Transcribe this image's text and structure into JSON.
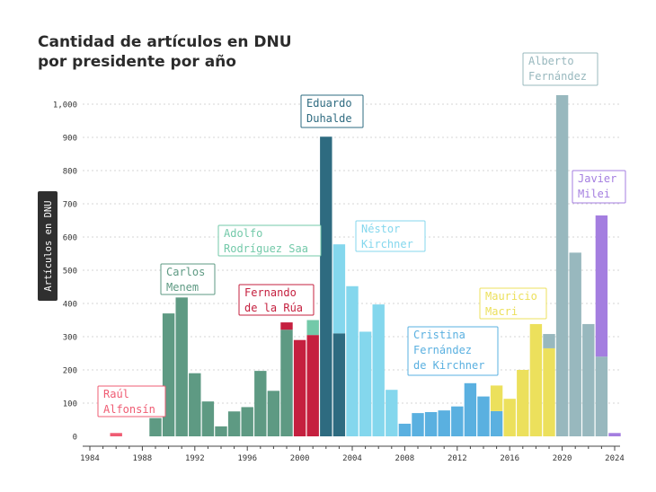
{
  "chart_data": {
    "type": "bar",
    "title_lines": [
      "Cantidad de artículos en DNU",
      "por presidente por año"
    ],
    "ylabel": "Artículos en DNU",
    "xlabel": "",
    "ylim": [
      0,
      1030
    ],
    "xlim": [
      1984,
      2025
    ],
    "y_ticks": [
      0,
      100,
      200,
      300,
      400,
      500,
      600,
      700,
      800,
      900,
      1000
    ],
    "y_tick_labels": [
      "0",
      "100",
      "200",
      "300",
      "400",
      "500",
      "600",
      "700",
      "800",
      "900",
      "1,000"
    ],
    "x_ticks": [
      1984,
      1988,
      1992,
      1996,
      2000,
      2004,
      2008,
      2012,
      2016,
      2020,
      2024
    ],
    "x_tick_labels": [
      "1984",
      "1988",
      "1992",
      "1996",
      "2000",
      "2004",
      "2008",
      "2012",
      "2016",
      "2020",
      "2024"
    ],
    "grid": true,
    "presidents": [
      {
        "name_lines": [
          "Raúl",
          "Alfonsín"
        ],
        "color": "#ef5c73"
      },
      {
        "name_lines": [
          "Carlos",
          "Menem"
        ],
        "color": "#5e9a83"
      },
      {
        "name_lines": [
          "Fernando",
          "de la Rúa"
        ],
        "color": "#c5203f"
      },
      {
        "name_lines": [
          "Adolfo",
          "Rodríguez Saa"
        ],
        "color": "#73c9a9"
      },
      {
        "name_lines": [
          "Eduardo",
          "Duhalde"
        ],
        "color": "#2e6b80"
      },
      {
        "name_lines": [
          "Néstor",
          "Kirchner"
        ],
        "color": "#84d7ed"
      },
      {
        "name_lines": [
          "Cristina",
          "Fernández",
          "de Kirchner"
        ],
        "color": "#5ab0e0"
      },
      {
        "name_lines": [
          "Mauricio",
          "Macri"
        ],
        "color": "#ece05c"
      },
      {
        "name_lines": [
          "Alberto",
          "Fernández"
        ],
        "color": "#98b8be"
      },
      {
        "name_lines": [
          "Javier",
          "Milei"
        ],
        "color": "#a47ee0"
      }
    ],
    "bars": [
      {
        "year": 1986,
        "segments": [
          {
            "p": 0,
            "value": 10
          }
        ]
      },
      {
        "year": 1989,
        "segments": [
          {
            "p": 1,
            "value": 55
          }
        ]
      },
      {
        "year": 1990,
        "segments": [
          {
            "p": 1,
            "value": 370
          }
        ]
      },
      {
        "year": 1991,
        "segments": [
          {
            "p": 1,
            "value": 418
          }
        ]
      },
      {
        "year": 1992,
        "segments": [
          {
            "p": 1,
            "value": 190
          }
        ]
      },
      {
        "year": 1993,
        "segments": [
          {
            "p": 1,
            "value": 105
          }
        ]
      },
      {
        "year": 1994,
        "segments": [
          {
            "p": 1,
            "value": 30
          }
        ]
      },
      {
        "year": 1995,
        "segments": [
          {
            "p": 1,
            "value": 75
          }
        ]
      },
      {
        "year": 1996,
        "segments": [
          {
            "p": 1,
            "value": 88
          }
        ]
      },
      {
        "year": 1997,
        "segments": [
          {
            "p": 1,
            "value": 197
          }
        ]
      },
      {
        "year": 1998,
        "segments": [
          {
            "p": 1,
            "value": 137
          }
        ]
      },
      {
        "year": 1999,
        "segments": [
          {
            "p": 1,
            "value": 321
          },
          {
            "p": 2,
            "value": 22
          }
        ]
      },
      {
        "year": 2000,
        "segments": [
          {
            "p": 2,
            "value": 290
          }
        ]
      },
      {
        "year": 2001,
        "segments": [
          {
            "p": 2,
            "value": 305
          },
          {
            "p": 3,
            "value": 45
          }
        ]
      },
      {
        "year": 2002,
        "segments": [
          {
            "p": 4,
            "value": 902
          }
        ]
      },
      {
        "year": 2003,
        "segments": [
          {
            "p": 4,
            "value": 310
          },
          {
            "p": 5,
            "value": 268
          }
        ]
      },
      {
        "year": 2004,
        "segments": [
          {
            "p": 5,
            "value": 452
          }
        ]
      },
      {
        "year": 2005,
        "segments": [
          {
            "p": 5,
            "value": 315
          }
        ]
      },
      {
        "year": 2006,
        "segments": [
          {
            "p": 5,
            "value": 397
          }
        ]
      },
      {
        "year": 2007,
        "segments": [
          {
            "p": 5,
            "value": 140
          }
        ]
      },
      {
        "year": 2008,
        "segments": [
          {
            "p": 6,
            "value": 38
          }
        ]
      },
      {
        "year": 2009,
        "segments": [
          {
            "p": 6,
            "value": 70
          }
        ]
      },
      {
        "year": 2010,
        "segments": [
          {
            "p": 6,
            "value": 73
          }
        ]
      },
      {
        "year": 2011,
        "segments": [
          {
            "p": 6,
            "value": 78
          }
        ]
      },
      {
        "year": 2012,
        "segments": [
          {
            "p": 6,
            "value": 90
          }
        ]
      },
      {
        "year": 2013,
        "segments": [
          {
            "p": 6,
            "value": 160
          }
        ]
      },
      {
        "year": 2014,
        "segments": [
          {
            "p": 6,
            "value": 120
          }
        ]
      },
      {
        "year": 2015,
        "segments": [
          {
            "p": 6,
            "value": 76
          },
          {
            "p": 7,
            "value": 77
          }
        ]
      },
      {
        "year": 2016,
        "segments": [
          {
            "p": 7,
            "value": 113
          }
        ]
      },
      {
        "year": 2017,
        "segments": [
          {
            "p": 7,
            "value": 200
          }
        ]
      },
      {
        "year": 2018,
        "segments": [
          {
            "p": 7,
            "value": 338
          }
        ]
      },
      {
        "year": 2019,
        "segments": [
          {
            "p": 7,
            "value": 265
          },
          {
            "p": 8,
            "value": 43
          }
        ]
      },
      {
        "year": 2020,
        "segments": [
          {
            "p": 8,
            "value": 1027
          }
        ]
      },
      {
        "year": 2021,
        "segments": [
          {
            "p": 8,
            "value": 553
          }
        ]
      },
      {
        "year": 2022,
        "segments": [
          {
            "p": 8,
            "value": 338
          }
        ]
      },
      {
        "year": 2023,
        "segments": [
          {
            "p": 8,
            "value": 240
          },
          {
            "p": 9,
            "value": 425
          }
        ]
      },
      {
        "year": 2024,
        "segments": [
          {
            "p": 9,
            "value": 10
          }
        ]
      }
    ]
  }
}
